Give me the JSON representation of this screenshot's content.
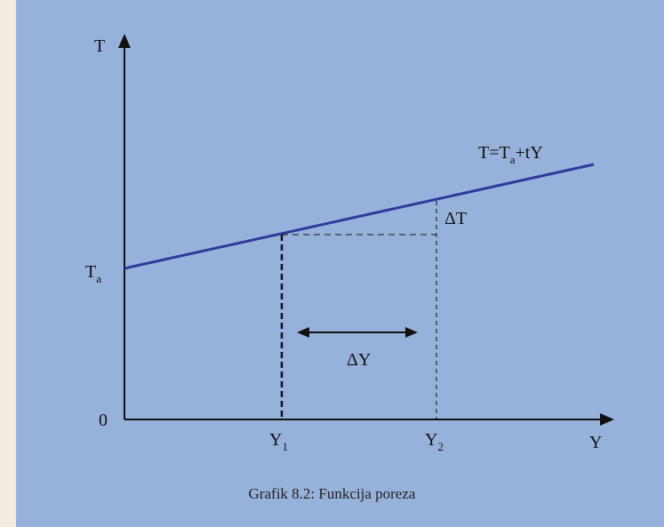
{
  "axes": {
    "y_label": "T",
    "x_label": "Y",
    "origin_label": "0"
  },
  "intercept": {
    "base": "T",
    "sub": "a"
  },
  "line_equation": {
    "pre": "T=T",
    "sub": "a",
    "post": "+tY"
  },
  "x_marks": [
    {
      "base": "Y",
      "sub": "1"
    },
    {
      "base": "Y",
      "sub": "2"
    }
  ],
  "delta_T": "ΔT",
  "delta_Y": "ΔY",
  "caption": "Grafik 8.2: Funkcija poreza",
  "colors": {
    "panel": "#97b2da",
    "line": "#2e3a9c",
    "axis": "#111111"
  }
}
